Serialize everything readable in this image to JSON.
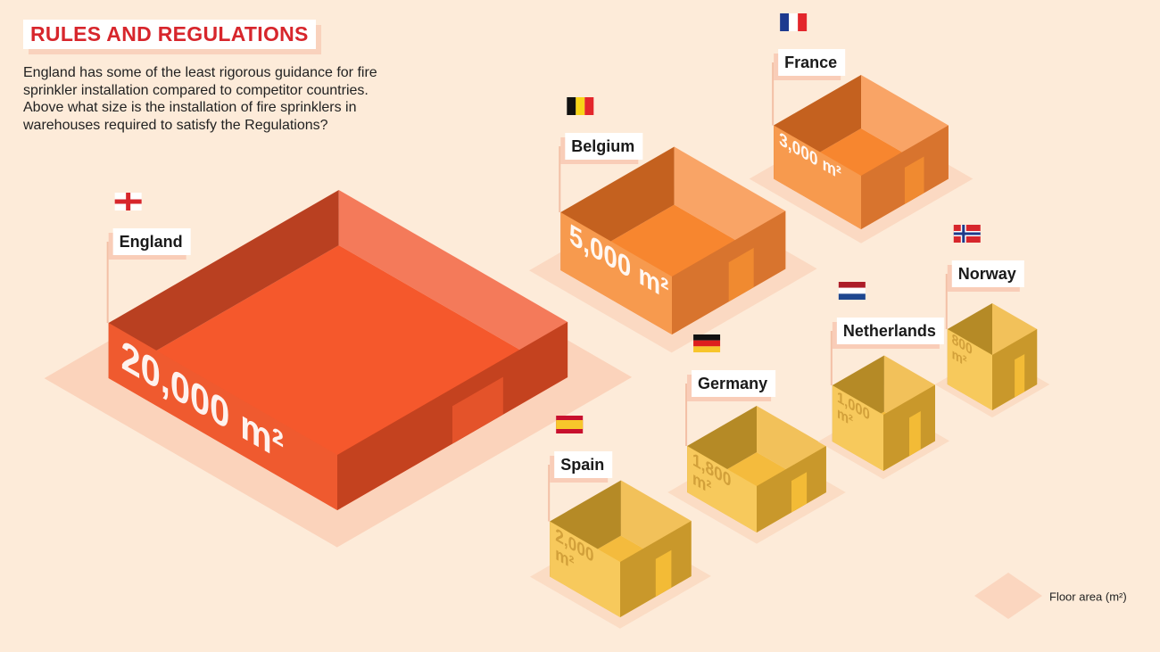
{
  "header": {
    "title": "RULES AND REGULATIONS",
    "description": "England has some of the least rigorous guidance for fire sprinkler installation compared to competitor countries. Above what size is the installation of fire sprinklers in warehouses required to satisfy the Regulations?"
  },
  "countries": [
    {
      "name": "England",
      "area": "20,000",
      "unit": "m²"
    },
    {
      "name": "Belgium",
      "area": "5,000",
      "unit": "m²"
    },
    {
      "name": "France",
      "area": "3,000",
      "unit": "m²"
    },
    {
      "name": "Spain",
      "area": "2,000",
      "unit": "m²"
    },
    {
      "name": "Germany",
      "area": "1,800",
      "unit": "m²"
    },
    {
      "name": "Netherlands",
      "area": "1,000",
      "unit": "m²"
    },
    {
      "name": "Norway",
      "area": "800",
      "unit": "m²"
    }
  ],
  "legend": {
    "label": "Floor area (m²)"
  }
}
